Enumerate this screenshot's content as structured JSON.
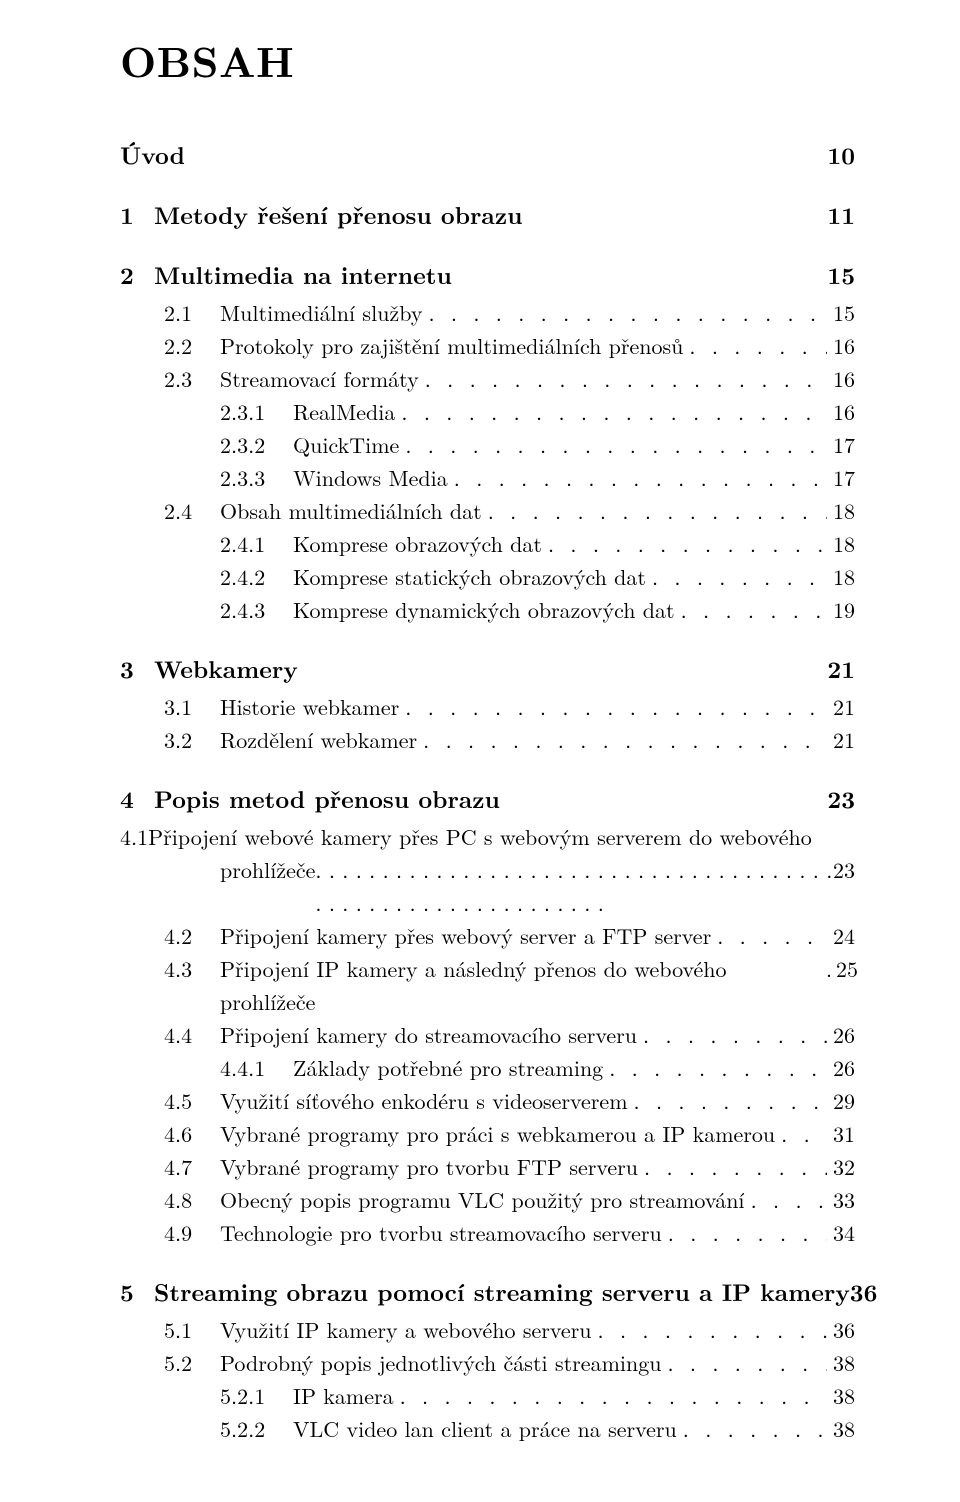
{
  "title": "OBSAH",
  "dot_fill": ". . . . . . . . . . . . . . . . . . . . . . . . . . . . . . . . . . . . . . . . . . . . . . . . . . . . . . . . . . . . .",
  "entries": [
    {
      "type": "chap",
      "num": "",
      "label": "Úvod",
      "page": "10"
    },
    {
      "type": "chap",
      "num": "1",
      "label": "Metody řešení přenosu obrazu",
      "page": "11"
    },
    {
      "type": "chap",
      "num": "2",
      "label": "Multimedia na internetu",
      "page": "15"
    },
    {
      "type": "sec",
      "level": 1,
      "num": "2.1",
      "label": "Multimediální služby",
      "page": "15"
    },
    {
      "type": "sec",
      "level": 1,
      "num": "2.2",
      "label": "Protokoly pro zajištění multimediálních přenosů",
      "page": "16"
    },
    {
      "type": "sec",
      "level": 1,
      "num": "2.3",
      "label": "Streamovací formáty",
      "page": "16"
    },
    {
      "type": "sec",
      "level": 2,
      "num": "2.3.1",
      "label": "RealMedia",
      "page": "16"
    },
    {
      "type": "sec",
      "level": 2,
      "num": "2.3.2",
      "label": "QuickTime",
      "page": "17"
    },
    {
      "type": "sec",
      "level": 2,
      "num": "2.3.3",
      "label": "Windows Media",
      "page": "17"
    },
    {
      "type": "sec",
      "level": 1,
      "num": "2.4",
      "label": "Obsah multimediálních dat",
      "page": "18"
    },
    {
      "type": "sec",
      "level": 2,
      "num": "2.4.1",
      "label": "Komprese obrazových dat",
      "page": "18"
    },
    {
      "type": "sec",
      "level": 2,
      "num": "2.4.2",
      "label": "Komprese statických obrazových dat",
      "page": "18"
    },
    {
      "type": "sec",
      "level": 2,
      "num": "2.4.3",
      "label": "Komprese dynamických obrazových dat",
      "page": "19"
    },
    {
      "type": "chap",
      "num": "3",
      "label": "Webkamery",
      "page": "21"
    },
    {
      "type": "sec",
      "level": 1,
      "num": "3.1",
      "label": "Historie webkamer",
      "page": "21"
    },
    {
      "type": "sec",
      "level": 1,
      "num": "3.2",
      "label": "Rozdělení webkamer",
      "page": "21"
    },
    {
      "type": "chap",
      "num": "4",
      "label": "Popis metod přenosu obrazu",
      "page": "23"
    },
    {
      "type": "ml",
      "level": 1,
      "num": "4.1",
      "line1": "Připojení webové kamery přes PC s webovým serverem do webového",
      "line2": "prohlížeče",
      "page": "23"
    },
    {
      "type": "sec",
      "level": 1,
      "num": "4.2",
      "label": "Připojení kamery přes webový server a FTP server",
      "page": "24"
    },
    {
      "type": "sec",
      "level": 1,
      "num": "4.3",
      "label": "Připojení IP kamery a následný přenos do webového prohlížeče",
      "page": "25"
    },
    {
      "type": "sec",
      "level": 1,
      "num": "4.4",
      "label": "Připojení kamery do streamovacího serveru",
      "page": "26"
    },
    {
      "type": "sec",
      "level": 2,
      "num": "4.4.1",
      "label": "Základy potřebné pro streaming",
      "page": "26"
    },
    {
      "type": "sec",
      "level": 1,
      "num": "4.5",
      "label": "Využití síťového enkodéru s videoserverem",
      "page": "29"
    },
    {
      "type": "sec",
      "level": 1,
      "num": "4.6",
      "label": "Vybrané programy pro práci s webkamerou a IP kamerou",
      "page": "31"
    },
    {
      "type": "sec",
      "level": 1,
      "num": "4.7",
      "label": "Vybrané programy pro tvorbu FTP serveru",
      "page": "32"
    },
    {
      "type": "sec",
      "level": 1,
      "num": "4.8",
      "label": "Obecný popis programu VLC použitý pro streamování",
      "page": "33"
    },
    {
      "type": "sec",
      "level": 1,
      "num": "4.9",
      "label": "Technologie pro tvorbu streamovacího serveru",
      "page": "34"
    },
    {
      "type": "chap",
      "num": "5",
      "label": "Streaming obrazu pomocí streaming serveru a IP kamery",
      "page": "36"
    },
    {
      "type": "sec",
      "level": 1,
      "num": "5.1",
      "label": "Využití IP kamery a webového serveru",
      "page": "36"
    },
    {
      "type": "sec",
      "level": 1,
      "num": "5.2",
      "label": "Podrobný popis jednotlivých části streamingu",
      "page": "38"
    },
    {
      "type": "sec",
      "level": 2,
      "num": "5.2.1",
      "label": "IP kamera",
      "page": "38"
    },
    {
      "type": "sec",
      "level": 2,
      "num": "5.2.2",
      "label": "VLC video lan client a práce na serveru",
      "page": "38"
    }
  ]
}
